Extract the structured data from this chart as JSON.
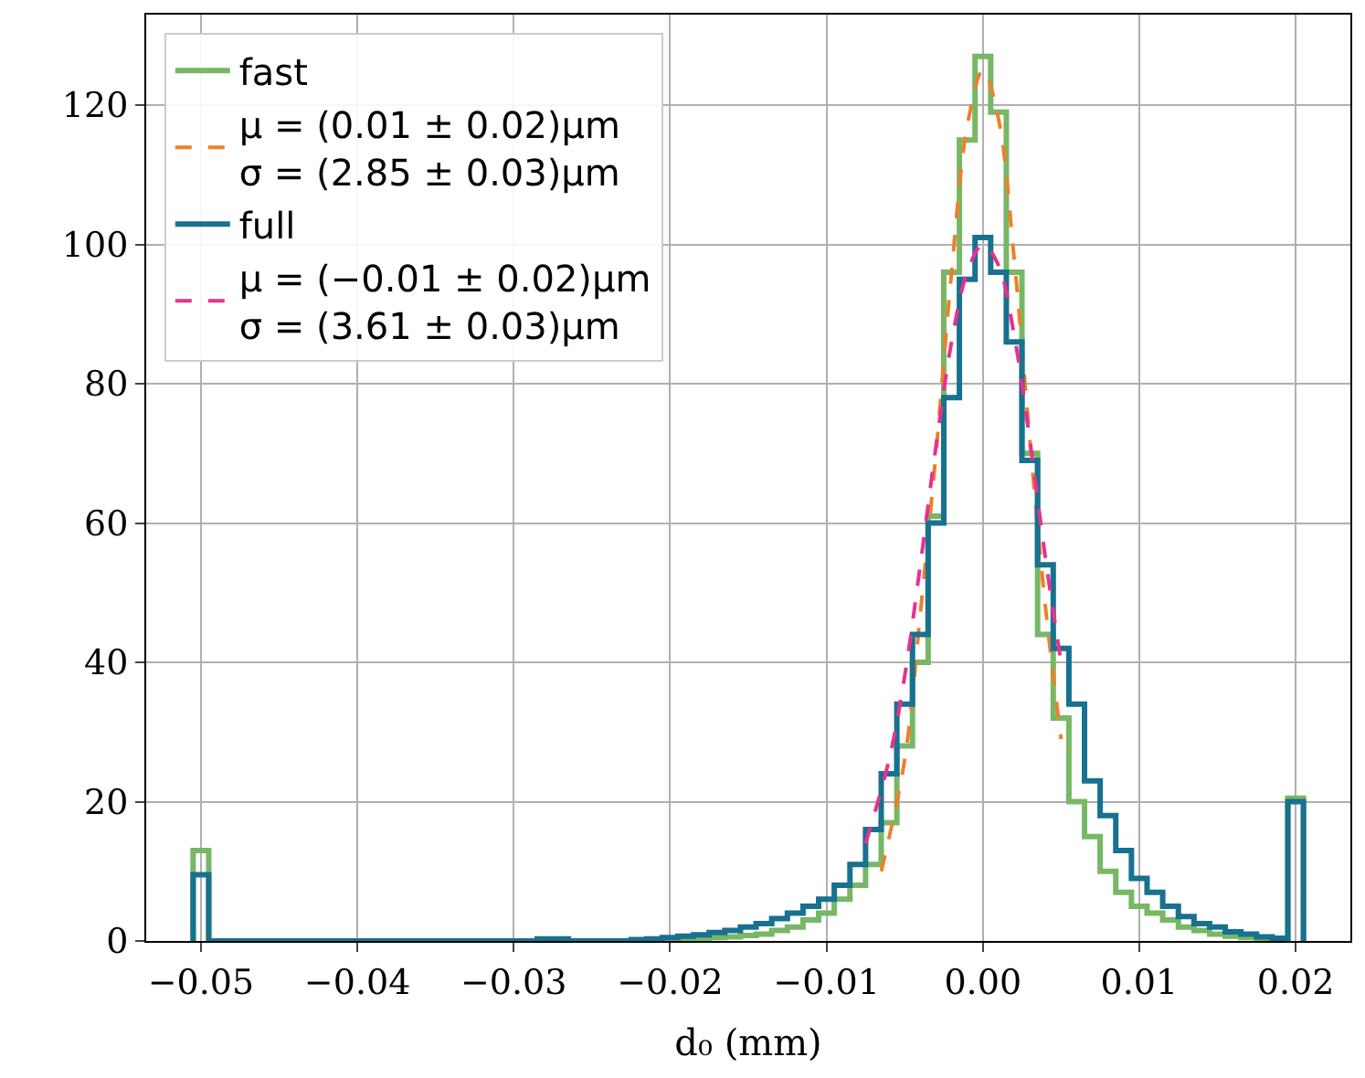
{
  "chart_data": {
    "type": "histogram",
    "xlabel": "d₀ (mm)",
    "bins": [
      -0.0505,
      -0.0495,
      -0.0485,
      -0.0475,
      -0.0465,
      -0.0455,
      -0.0445,
      -0.0435,
      -0.0425,
      -0.0415,
      -0.0405,
      -0.0395,
      -0.0385,
      -0.0375,
      -0.0365,
      -0.0355,
      -0.0345,
      -0.0335,
      -0.0325,
      -0.0315,
      -0.0305,
      -0.0295,
      -0.0285,
      -0.0275,
      -0.0265,
      -0.0255,
      -0.0245,
      -0.0235,
      -0.0225,
      -0.0215,
      -0.0205,
      -0.0195,
      -0.0185,
      -0.0175,
      -0.0165,
      -0.0155,
      -0.0145,
      -0.0135,
      -0.0125,
      -0.0115,
      -0.0105,
      -0.0095,
      -0.0085,
      -0.0075,
      -0.0065,
      -0.0055,
      -0.0045,
      -0.0035,
      -0.0025,
      -0.0015,
      -0.0005,
      0.0005,
      0.0015,
      0.0025,
      0.0035,
      0.0045,
      0.0055,
      0.0065,
      0.0075,
      0.0085,
      0.0095,
      0.0105,
      0.0115,
      0.0125,
      0.0135,
      0.0145,
      0.0155,
      0.0165,
      0.0175,
      0.0185,
      0.0195,
      0.0205
    ],
    "series": [
      {
        "name": "fast",
        "color": "#77b766",
        "values": [
          13,
          0,
          0,
          0,
          0,
          0,
          0,
          0,
          0,
          0,
          0,
          0,
          0,
          0,
          0,
          0,
          0,
          0,
          0,
          0,
          0,
          0,
          0,
          0,
          0,
          0,
          0,
          0,
          0,
          0.1,
          0.2,
          0.3,
          0.4,
          0.5,
          0.6,
          0.8,
          1,
          1.5,
          2,
          3,
          4,
          6,
          8,
          11,
          17,
          28,
          40,
          61,
          96,
          115,
          127,
          119,
          96,
          70,
          44,
          32,
          20,
          15,
          10,
          7,
          5,
          4,
          3,
          2,
          1.5,
          1,
          0.7,
          0.5,
          0.3,
          0.2,
          20.5
        ]
      },
      {
        "type": "line",
        "name": "μ = (0.01 ± 0.02)μm\nσ = (2.85 ± 0.03)μm",
        "color": "#f07f2a",
        "line_style": "dashed",
        "x": [
          -0.0065,
          -0.005,
          -0.004,
          -0.003,
          -0.002,
          -0.001,
          0,
          0.001,
          0.002,
          0.003,
          0.004,
          0.005
        ],
        "values": [
          10,
          26,
          47,
          70,
          96,
          117,
          125,
          118,
          98,
          72,
          48,
          29
        ]
      },
      {
        "name": "full",
        "color": "#17718f",
        "values": [
          9.5,
          0,
          0,
          0,
          0,
          0,
          0,
          0,
          0,
          0,
          0,
          0,
          0,
          0,
          0,
          0,
          0,
          0,
          0,
          0,
          0,
          0,
          0.3,
          0.3,
          0,
          0,
          0,
          0,
          0.2,
          0.3,
          0.5,
          0.7,
          0.9,
          1.2,
          1.5,
          2,
          2.5,
          3.2,
          4,
          5,
          6,
          8,
          11,
          16,
          24,
          34,
          44,
          60,
          78,
          95,
          101,
          96,
          86,
          69,
          54,
          42,
          34,
          23,
          18,
          13,
          9,
          7,
          5,
          3.5,
          2.5,
          2,
          1.3,
          1,
          0.6,
          0.4,
          20
        ]
      },
      {
        "type": "line",
        "name": "μ = (−0.01 ± 0.02)μm\nσ = (3.61 ± 0.03)μm",
        "color": "#e8308f",
        "line_style": "dashed",
        "x": [
          -0.0075,
          -0.006,
          -0.005,
          -0.004,
          -0.003,
          -0.002,
          -0.001,
          0,
          0.001,
          0.002,
          0.003,
          0.004,
          0.005
        ],
        "values": [
          14,
          26,
          38,
          54,
          71,
          86,
          96,
          100,
          97,
          87,
          72,
          55,
          40
        ]
      }
    ],
    "xlim": [
      -0.0535,
      0.0235
    ],
    "xticks": [
      {
        "value": -0.05,
        "label": "−0.05"
      },
      {
        "value": -0.04,
        "label": "−0.04"
      },
      {
        "value": -0.03,
        "label": "−0.03"
      },
      {
        "value": -0.02,
        "label": "−0.02"
      },
      {
        "value": -0.01,
        "label": "−0.01"
      },
      {
        "value": 0,
        "label": "0.00"
      },
      {
        "value": 0.01,
        "label": "0.01"
      },
      {
        "value": 0.02,
        "label": "0.02"
      }
    ],
    "ylim": [
      0,
      133
    ],
    "yticks": [
      0,
      20,
      40,
      60,
      80,
      100,
      120
    ],
    "grid": true,
    "legend": "top left"
  }
}
